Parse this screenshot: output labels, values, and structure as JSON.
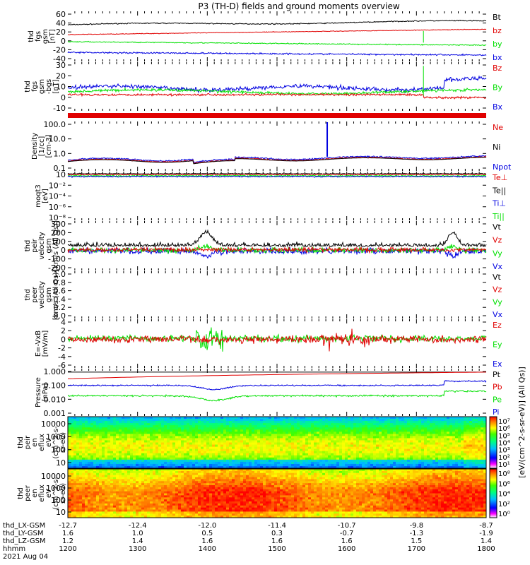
{
  "title": "P3 (TH-D) fields and ground moments overview",
  "colors": {
    "black": "#000000",
    "red": "#e00000",
    "green": "#00e000",
    "blue": "#0000e0",
    "spectrogram_scale": [
      "#ffffff",
      "#ff00ff",
      "#8000ff",
      "#0000ff",
      "#00c0ff",
      "#00ffc0",
      "#00ff00",
      "#ffff00",
      "#ff8000",
      "#ff0000"
    ]
  },
  "chart_data": {
    "type": "line",
    "panels": [
      {
        "id": "fgs_gsm",
        "ylabel": [
          "thd",
          "fgs",
          "gsm",
          "[nT]"
        ],
        "yticks": [
          "60",
          "40",
          "20",
          "0",
          "-20",
          "-40"
        ],
        "ylim": [
          -40,
          60
        ],
        "legend": [
          {
            "label": "Bt",
            "color": "#000000"
          },
          {
            "label": "bz",
            "color": "#e00000"
          },
          {
            "label": "by",
            "color": "#00e000"
          },
          {
            "label": "bx",
            "color": "#0000e0"
          }
        ]
      },
      {
        "id": "fgs_dsl",
        "ylabel": [
          "thd",
          "fgs",
          "gsm",
          "-bgs",
          "[nT]"
        ],
        "yticks": [
          "30",
          "20",
          "10",
          "0",
          "-10"
        ],
        "ylim": [
          -15,
          30
        ],
        "legend": [
          {
            "label": "Bz",
            "color": "#e00000"
          },
          {
            "label": "By",
            "color": "#00e000"
          },
          {
            "label": "Bx",
            "color": "#0000e0"
          }
        ]
      },
      {
        "id": "density",
        "ylabel": [
          "Density",
          "[1/cc]",
          "[cm-3]"
        ],
        "yticks": [
          "100.0",
          "10.0",
          "1.0",
          "0.1"
        ],
        "ylim": [
          0.1,
          100
        ],
        "scale": "log",
        "legend": [
          {
            "label": "Ne",
            "color": "#e00000"
          },
          {
            "label": "Ni",
            "color": "#000000"
          },
          {
            "label": "Npot",
            "color": "#0000e0"
          }
        ]
      },
      {
        "id": "temperature",
        "ylabel": [
          "moqt3",
          "[eV]"
        ],
        "yticks": [
          "10",
          "10⁻²",
          "10⁻⁴",
          "10⁻⁶",
          "10⁻⁸"
        ],
        "scale": "log",
        "legend": [
          {
            "label": "Te⊥",
            "color": "#e00000"
          },
          {
            "label": "Te||",
            "color": "#000000"
          },
          {
            "label": "Ti⊥",
            "color": "#0000e0"
          },
          {
            "label": "Ti||",
            "color": "#00e000"
          }
        ]
      },
      {
        "id": "peir_velocity",
        "ylabel": [
          "thd",
          "peir",
          "velocity",
          "gsm",
          "[km/s (All Qs)]"
        ],
        "yticks": [
          "300",
          "200",
          "100",
          "0",
          "-100",
          "-200"
        ],
        "ylim": [
          -200,
          300
        ],
        "legend": [
          {
            "label": "Vt",
            "color": "#000000"
          },
          {
            "label": "Vz",
            "color": "#e00000"
          },
          {
            "label": "Vy",
            "color": "#00e000"
          },
          {
            "label": "Vx",
            "color": "#0000e0"
          }
        ]
      },
      {
        "id": "peer_velocity",
        "ylabel": [
          "thd",
          "peer",
          "velocity",
          "gsm",
          "[km/s (All Qs)]"
        ],
        "yticks": [
          "1.0",
          "0.8",
          "0.6",
          "0.4",
          "0.2",
          "0.0"
        ],
        "ylim": [
          0,
          1
        ],
        "legend": [
          {
            "label": "Vt",
            "color": "#000000"
          },
          {
            "label": "Vz",
            "color": "#e00000"
          },
          {
            "label": "Vy",
            "color": "#00e000"
          },
          {
            "label": "Vx",
            "color": "#0000e0"
          }
        ]
      },
      {
        "id": "efield",
        "ylabel": [
          "E=-VxB",
          "[mV/m]"
        ],
        "yticks": [
          "4",
          "2",
          "0",
          "-2",
          "-4",
          "-6"
        ],
        "ylim": [
          -6,
          4
        ],
        "legend": [
          {
            "label": "Ez",
            "color": "#e00000"
          },
          {
            "label": "Ey",
            "color": "#00e000"
          },
          {
            "label": "Ex",
            "color": "#0000e0"
          }
        ]
      },
      {
        "id": "pressure",
        "ylabel": [
          "Pressure",
          "[nPa]"
        ],
        "yticks": [
          "1.000",
          "0.100",
          "0.010",
          "0.001"
        ],
        "ylim": [
          0.001,
          1
        ],
        "scale": "log",
        "legend": [
          {
            "label": "Pt",
            "color": "#000000"
          },
          {
            "label": "Pb",
            "color": "#e00000"
          },
          {
            "label": "Pe",
            "color": "#00e000"
          },
          {
            "label": "Pi",
            "color": "#0000e0"
          }
        ]
      },
      {
        "id": "peir_eflux",
        "ylabel": [
          "thd",
          "peir",
          "en",
          "eflux",
          "eV",
          "(cm^2-s-",
          "sr-eV)"
        ],
        "yticks": [
          "10000",
          "1000",
          "100",
          "10"
        ],
        "ylim": [
          5,
          20000
        ],
        "scale": "log",
        "type": "heatmap"
      },
      {
        "id": "peer_eflux",
        "ylabel": [
          "thd",
          "peer",
          "en",
          "eflux",
          "eV",
          "(cm^2-s-",
          "sr-eV)"
        ],
        "yticks": [
          "10000",
          "1000",
          "100",
          "10"
        ],
        "ylim": [
          5,
          20000
        ],
        "scale": "log",
        "type": "heatmap"
      }
    ],
    "colorbars": [
      {
        "ticks": [
          "10⁷",
          "10⁶",
          "10⁵",
          "10⁴",
          "10³",
          "10²",
          "10¹"
        ]
      },
      {
        "ticks": [
          "10⁸",
          "10⁶",
          "10⁴",
          "10²",
          "10⁰"
        ]
      }
    ],
    "colorbar_label": "[eV/(cm^2-s-sr-eV)] (All Qs)]",
    "x_axis": {
      "rows": [
        {
          "label": "thd_LX-GSM",
          "values": [
            "-12.7",
            "-12.4",
            "-12.0",
            "-11.4",
            "-10.7",
            "-9.8",
            "-8.7"
          ]
        },
        {
          "label": "thd_LY-GSM",
          "values": [
            "1.6",
            "1.0",
            "0.5",
            "0.3",
            "-0.7",
            "-1.3",
            "-1.9"
          ]
        },
        {
          "label": "thd_LZ-GSM",
          "values": [
            "1.2",
            "1.4",
            "1.6",
            "1.6",
            "1.6",
            "1.5",
            "1.4"
          ]
        },
        {
          "label": "hhmm",
          "values": [
            "1200",
            "1300",
            "1400",
            "1500",
            "1600",
            "1700",
            "1800"
          ]
        }
      ],
      "date": "2021 Aug 04"
    }
  }
}
